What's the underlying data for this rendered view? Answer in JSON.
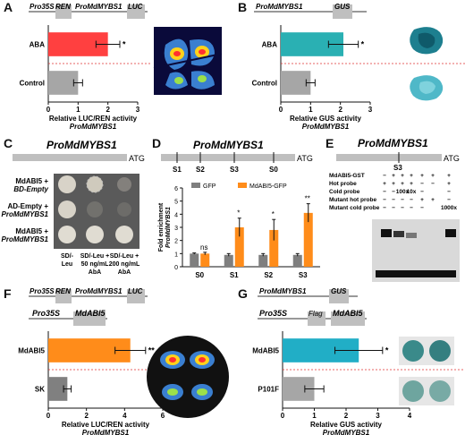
{
  "panels": {
    "A": {
      "letter": "A",
      "construct": {
        "pro35s": "Pro35S",
        "ren": "REN",
        "pro": "ProMdMYBS1",
        "luc": "LUC"
      },
      "chart_data": {
        "type": "bar",
        "categories": [
          "ABA",
          "Control"
        ],
        "values": [
          2.0,
          1.0
        ],
        "errors": [
          0.4,
          0.15
        ],
        "xlim": [
          0,
          3
        ],
        "xticks": [
          "0",
          "1",
          "2",
          "3"
        ],
        "xlabel": "Relative LUC/REN activity",
        "xlabel2": "ProMdMYBS1",
        "colors": [
          "#ff4040",
          "#a6a6a6"
        ],
        "significance": [
          "*",
          ""
        ]
      }
    },
    "B": {
      "letter": "B",
      "construct": {
        "pro": "ProMdMYBS1",
        "gus": "GUS"
      },
      "chart_data": {
        "type": "bar",
        "categories": [
          "ABA",
          "Control"
        ],
        "values": [
          2.1,
          1.0
        ],
        "errors": [
          0.5,
          0.15
        ],
        "xlim": [
          0,
          3
        ],
        "xticks": [
          "0",
          "1",
          "2",
          "3"
        ],
        "xlabel": "Relative GUS activity",
        "xlabel2": "ProMdMYBS1",
        "colors": [
          "#2ab0b3",
          "#a6a6a6"
        ],
        "significance": [
          "*",
          ""
        ]
      }
    },
    "C": {
      "letter": "C",
      "title": "ProMdMYBS1",
      "atg": "ATG",
      "rows": [
        {
          "line1": "MdABI5 +",
          "line2": "BD-Empty"
        },
        {
          "line1": "AD-Empty +",
          "line2": "ProMdMYBS1"
        },
        {
          "line1": "MdABI5 +",
          "line2": "ProMdMYBS1"
        }
      ],
      "cols": [
        {
          "line1": "SD/-",
          "line2": "Leu",
          "line3": ""
        },
        {
          "line1": "SD/-Leu +",
          "line2": "50 ng/mL",
          "line3": "AbA"
        },
        {
          "line1": "SD/-Leu +",
          "line2": "200 ng/mL",
          "line3": "AbA"
        }
      ]
    },
    "D": {
      "letter": "D",
      "title": "ProMdMYBS1",
      "atg": "ATG",
      "sites": [
        "S1",
        "S2",
        "S3",
        "S0"
      ],
      "chart_data": {
        "type": "bar",
        "categories": [
          "S0",
          "S1",
          "S2",
          "S3"
        ],
        "series": [
          {
            "name": "GFP",
            "values": [
              1.0,
              0.9,
              0.9,
              0.9
            ],
            "errors": [
              0.05,
              0.1,
              0.1,
              0.1
            ],
            "color": "#7f7f7f"
          },
          {
            "name": "MdABI5-GFP",
            "values": [
              1.0,
              3.0,
              2.8,
              4.1
            ],
            "errors": [
              0.1,
              0.7,
              0.8,
              0.7
            ],
            "color": "#ff8c1a"
          }
        ],
        "ylim": [
          0,
          6
        ],
        "yticks": [
          "0",
          "1",
          "2",
          "3",
          "4",
          "5",
          "6"
        ],
        "ylabel": "Fold enrichment",
        "ylabel2": "ProMdMYBS1",
        "significance": [
          "ns",
          "*",
          "*",
          "**"
        ]
      }
    },
    "E": {
      "letter": "E",
      "title": "ProMdMYBS1",
      "atg": "ATG",
      "site": "S3",
      "rows": [
        {
          "label": "MdABI5-GST",
          "marks": [
            "−",
            "+",
            "+",
            "+",
            "+",
            "+",
            "+"
          ]
        },
        {
          "label": "Hot probe",
          "marks": [
            "+",
            "+",
            "+",
            "+",
            "−",
            "−",
            "+"
          ]
        },
        {
          "label": "Cold probe",
          "marks": [
            "−",
            "−",
            "100x",
            "10x",
            "−",
            "",
            "−"
          ]
        },
        {
          "label": "Mutant hot probe",
          "marks": [
            "−",
            "−",
            "−",
            "−",
            "+",
            "+",
            "−"
          ]
        },
        {
          "label": "Mutant cold probe",
          "marks": [
            "−",
            "−",
            "−",
            "−",
            "−",
            "",
            "1000x"
          ]
        }
      ]
    },
    "F": {
      "letter": "F",
      "construct": {
        "pro35s": "Pro35S",
        "ren": "REN",
        "pro": "ProMdMYBS1",
        "luc": "LUC"
      },
      "effector": {
        "pro35s": "Pro35S",
        "gene": "MdABI5"
      },
      "chart_data": {
        "type": "bar",
        "categories": [
          "MdABI5",
          "SK"
        ],
        "values": [
          4.3,
          1.0
        ],
        "errors": [
          0.8,
          0.2
        ],
        "xlim": [
          0,
          6
        ],
        "xticks": [
          "0",
          "2",
          "4",
          "6"
        ],
        "xlabel": "Relative LUC/REN activity",
        "xlabel2": "ProMdMYBS1",
        "colors": [
          "#ff8c1a",
          "#808080"
        ],
        "significance": [
          "**",
          ""
        ]
      }
    },
    "G": {
      "letter": "G",
      "construct": {
        "pro": "ProMdMYBS1",
        "gus": "GUS"
      },
      "effector": {
        "pro35s": "Pro35S",
        "flag": "Flag",
        "gene": "MdABI5"
      },
      "chart_data": {
        "type": "bar",
        "categories": [
          "MdABI5",
          "P101F"
        ],
        "values": [
          2.4,
          1.0
        ],
        "errors": [
          0.75,
          0.3
        ],
        "xlim": [
          0,
          4
        ],
        "xticks": [
          "0",
          "1",
          "2",
          "3",
          "4"
        ],
        "xlabel": "Relative GUS activity",
        "xlabel2": "ProMdMYBS1",
        "colors": [
          "#21aec6",
          "#a6a6a6"
        ],
        "significance": [
          "*",
          ""
        ]
      }
    }
  },
  "colors": {
    "bg": "#ffffff",
    "box": "#bfbfbf",
    "redline": "#e03030",
    "gel": "#d9d9d9"
  }
}
